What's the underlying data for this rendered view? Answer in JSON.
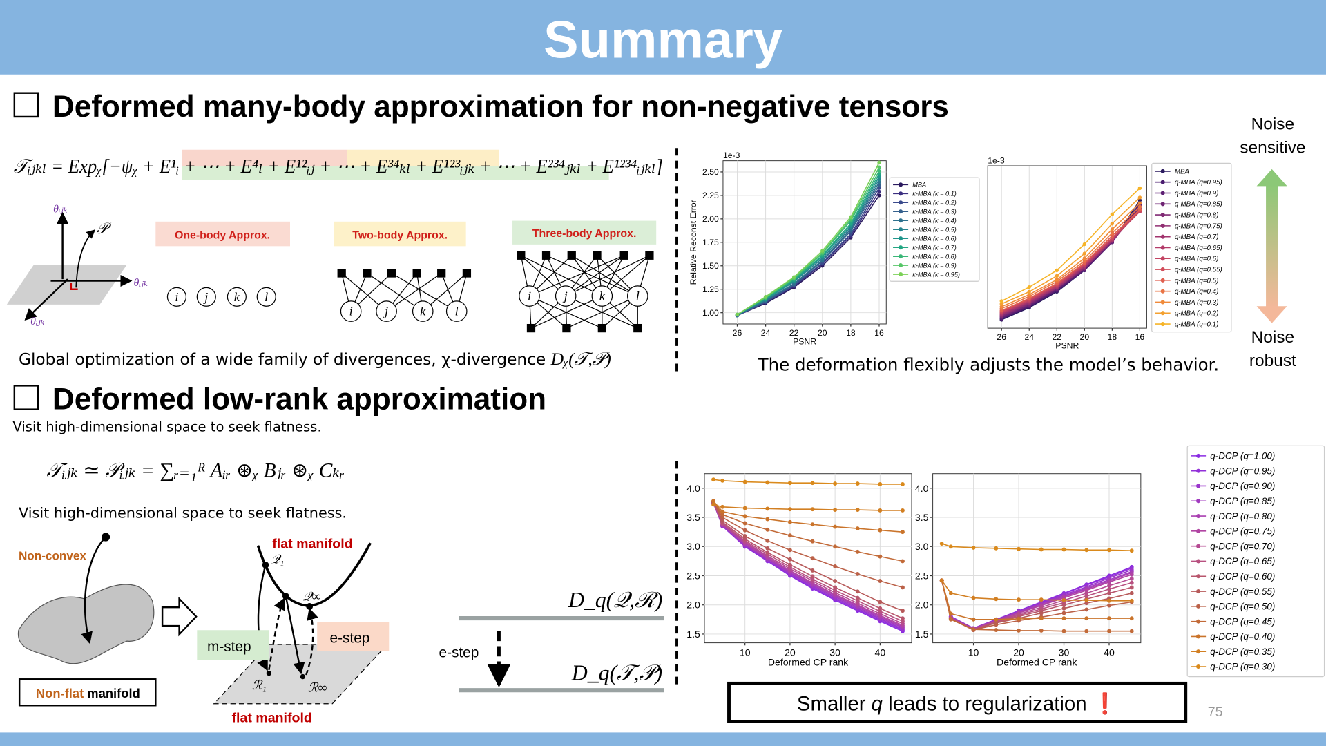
{
  "header": {
    "title": "Summary"
  },
  "section1": {
    "title": "Deformed many-body approximation for non-negative tensors",
    "formula": "𝒯ᵢⱼₖₗ = Expᵪ[−ψᵪ + E¹ᵢ + ⋯ + E⁴ₗ + E¹²ᵢⱼ + ⋯ + E³⁴ₖₗ + E¹²³ᵢⱼₖ + ⋯ + E²³⁴ⱼₖₗ + E¹²³⁴ᵢⱼₖₗ]",
    "approx_labels": [
      "One-body Approx.",
      "Two-body Approx.",
      "Three-body Approx."
    ],
    "theta_labels": [
      "θᵢⱼₖ",
      "θᵢⱼₖ",
      "θᵢⱼₖ"
    ],
    "point_label": "𝒫",
    "nodes": [
      [
        "i",
        "j",
        "k",
        "l"
      ],
      [
        "i",
        "j",
        "k",
        "l"
      ],
      [
        "i",
        "j",
        "k",
        "l"
      ]
    ],
    "caption": "Global optimization of a wide family of divergences, χ-divergence ",
    "caption_math": "Dᵪ(𝒯,𝒫)"
  },
  "plots_caption": "The deformation flexibly adjusts the model’s behavior.",
  "noise": {
    "top": [
      "Noise",
      "sensitive"
    ],
    "bottom": [
      "Noise",
      "robust"
    ]
  },
  "section2": {
    "title": "Deformed low-rank approximation",
    "subtitle": "Visit high-dimensional space to seek flatness.",
    "formula": "𝒯ᵢⱼₖ ≃ 𝒫ᵢⱼₖ = ∑ᵣ₌₁ᴿ Aᵢᵣ ⊛ᵪ Bⱼᵣ ⊛ᵪ Cₖᵣ",
    "note": "Visit high-dimensional space to seek flatness.",
    "non_convex": "Non-convex",
    "non_flat": [
      "Non-flat",
      " manifold"
    ],
    "flat_manifold": [
      "flat manifold",
      "flat manifold"
    ],
    "points": [
      "𝒬₁",
      "𝒬∞",
      "ℛ₁",
      "ℛ∞"
    ],
    "m_step": "m-step",
    "e_step": [
      "e-step",
      "e-step"
    ],
    "divergences": [
      "D_q(𝒬,ℛ)",
      "D_q(𝒯,𝒫)"
    ]
  },
  "conclusion": [
    "Smaller ",
    "q",
    " leads to regularization ",
    "❗"
  ],
  "page_number": "75",
  "chart_data": [
    {
      "type": "line",
      "ylabel": "Relative Reconst Error",
      "xlabel": "PSNR",
      "y_offset_label": "1e-3",
      "legend": true,
      "x": [
        26,
        24,
        22,
        20,
        18,
        16
      ],
      "xlim": [
        27,
        15.5
      ],
      "xticks": [
        26,
        24,
        22,
        20,
        18,
        16
      ],
      "ylim": [
        0.88,
        2.62
      ],
      "yticks": [
        {
          "value": 1,
          "label": "1.00"
        },
        1.25,
        {
          "value": 1.5,
          "label": "1.50"
        },
        1.75,
        {
          "value": 2,
          "label": "2.00"
        },
        2.25,
        {
          "value": 2.5,
          "label": "2.50"
        }
      ],
      "grid": true,
      "series": [
        {
          "name": "MBA",
          "color": "#2a1a5e",
          "values": [
            0.97,
            1.1,
            1.27,
            1.5,
            1.8,
            2.25
          ]
        },
        {
          "name": "κ-MBA (κ = 0.1)",
          "color": "#3b2f80",
          "values": [
            0.97,
            1.11,
            1.28,
            1.52,
            1.82,
            2.29
          ]
        },
        {
          "name": "κ-MBA (κ = 0.2)",
          "color": "#3a4a8c",
          "values": [
            0.97,
            1.11,
            1.29,
            1.53,
            1.84,
            2.33
          ]
        },
        {
          "name": "κ-MBA (κ = 0.3)",
          "color": "#35608d",
          "values": [
            0.97,
            1.12,
            1.3,
            1.55,
            1.87,
            2.36
          ]
        },
        {
          "name": "κ-MBA (κ = 0.4)",
          "color": "#2d718e",
          "values": [
            0.97,
            1.13,
            1.31,
            1.56,
            1.89,
            2.39
          ]
        },
        {
          "name": "κ-MBA (κ = 0.5)",
          "color": "#26838e",
          "values": [
            0.98,
            1.14,
            1.33,
            1.58,
            1.91,
            2.42
          ]
        },
        {
          "name": "κ-MBA (κ = 0.6)",
          "color": "#1f958b",
          "values": [
            0.98,
            1.14,
            1.34,
            1.6,
            1.93,
            2.45
          ]
        },
        {
          "name": "κ-MBA (κ = 0.7)",
          "color": "#23a783",
          "values": [
            0.98,
            1.15,
            1.35,
            1.61,
            1.95,
            2.48
          ]
        },
        {
          "name": "κ-MBA (κ = 0.8)",
          "color": "#3ab778",
          "values": [
            0.98,
            1.16,
            1.36,
            1.63,
            1.98,
            2.51
          ]
        },
        {
          "name": "κ-MBA (κ = 0.9)",
          "color": "#56c667",
          "values": [
            0.98,
            1.16,
            1.37,
            1.64,
            2.0,
            2.55
          ]
        },
        {
          "name": "κ-MBA (κ = 0.95)",
          "color": "#7bd157",
          "values": [
            0.98,
            1.17,
            1.38,
            1.66,
            2.02,
            2.6
          ]
        }
      ]
    },
    {
      "type": "line",
      "xlabel": "PSNR",
      "y_offset_label": "1e-3",
      "legend": true,
      "x": [
        26,
        24,
        22,
        20,
        18,
        16
      ],
      "xlim": [
        27,
        15.5
      ],
      "xticks": [
        26,
        24,
        22,
        20,
        18,
        16
      ],
      "ylim": [
        0.88,
        2.62
      ],
      "grid": true,
      "series": [
        {
          "name": "MBA",
          "color": "#2a1a5e",
          "values": [
            0.97,
            1.1,
            1.27,
            1.5,
            1.8,
            2.25
          ]
        },
        {
          "name": "q-MBA (q=0.95)",
          "color": "#4a1c6f",
          "values": [
            0.98,
            1.11,
            1.28,
            1.5,
            1.8,
            2.22
          ]
        },
        {
          "name": "q-MBA (q=0.9)",
          "color": "#5d1f73",
          "values": [
            0.99,
            1.12,
            1.29,
            1.51,
            1.8,
            2.2
          ]
        },
        {
          "name": "q-MBA (q=0.85)",
          "color": "#6f2474",
          "values": [
            1.0,
            1.13,
            1.3,
            1.52,
            1.81,
            2.18
          ]
        },
        {
          "name": "q-MBA (q=0.8)",
          "color": "#802a74",
          "values": [
            1.01,
            1.14,
            1.31,
            1.52,
            1.81,
            2.16
          ]
        },
        {
          "name": "q-MBA (q=0.75)",
          "color": "#912f72",
          "values": [
            1.02,
            1.15,
            1.31,
            1.53,
            1.82,
            2.15
          ]
        },
        {
          "name": "q-MBA (q=0.7)",
          "color": "#a2346e",
          "values": [
            1.03,
            1.16,
            1.32,
            1.54,
            1.82,
            2.14
          ]
        },
        {
          "name": "q-MBA (q=0.65)",
          "color": "#b33b69",
          "values": [
            1.04,
            1.17,
            1.33,
            1.55,
            1.83,
            2.13
          ]
        },
        {
          "name": "q-MBA (q=0.6)",
          "color": "#c34362",
          "values": [
            1.05,
            1.18,
            1.34,
            1.56,
            1.84,
            2.13
          ]
        },
        {
          "name": "q-MBA (q=0.55)",
          "color": "#d14c5a",
          "values": [
            1.06,
            1.19,
            1.35,
            1.57,
            1.85,
            2.14
          ]
        },
        {
          "name": "q-MBA (q=0.5)",
          "color": "#e06050",
          "values": [
            1.07,
            1.2,
            1.36,
            1.58,
            1.87,
            2.15
          ]
        },
        {
          "name": "q-MBA (q=0.4)",
          "color": "#e97445",
          "values": [
            1.09,
            1.22,
            1.38,
            1.6,
            1.9,
            2.18
          ]
        },
        {
          "name": "q-MBA (q=0.3)",
          "color": "#f08a3a",
          "values": [
            1.11,
            1.24,
            1.4,
            1.63,
            1.94,
            2.22
          ]
        },
        {
          "name": "q-MBA (q=0.2)",
          "color": "#f4a130",
          "values": [
            1.14,
            1.27,
            1.44,
            1.68,
            2.0,
            2.28
          ]
        },
        {
          "name": "q-MBA (q=0.1)",
          "color": "#f6b428",
          "values": [
            1.17,
            1.32,
            1.5,
            1.78,
            2.1,
            2.38
          ]
        }
      ]
    },
    {
      "type": "line",
      "xlabel": "Deformed CP rank",
      "legend": true,
      "x": [
        3,
        5,
        10,
        15,
        20,
        25,
        30,
        35,
        40,
        45
      ],
      "xlim": [
        1,
        47
      ],
      "xticks": [
        10,
        20,
        30,
        40
      ],
      "ylim": [
        1.35,
        4.25
      ],
      "yticks": [
        1.5,
        {
          "value": 2,
          "label": "2.0"
        },
        2.5,
        {
          "value": 3,
          "label": "3.0"
        },
        3.5,
        {
          "value": 4,
          "label": "4.0"
        }
      ],
      "grid": true,
      "series": [
        {
          "name": "q-DCP (q=1.00)",
          "color": "#8a2be2",
          "values": [
            3.75,
            3.35,
            3.0,
            2.75,
            2.5,
            2.28,
            2.08,
            1.9,
            1.72,
            1.55
          ]
        },
        {
          "name": "q-DCP (q=0.95)",
          "color": "#9230d8",
          "values": [
            3.75,
            3.35,
            3.0,
            2.76,
            2.51,
            2.3,
            2.1,
            1.92,
            1.74,
            1.57
          ]
        },
        {
          "name": "q-DCP (q=0.90)",
          "color": "#9a35cc",
          "values": [
            3.75,
            3.36,
            3.02,
            2.77,
            2.53,
            2.32,
            2.12,
            1.94,
            1.76,
            1.59
          ]
        },
        {
          "name": "q-DCP (q=0.85)",
          "color": "#a13abf",
          "values": [
            3.75,
            3.36,
            3.03,
            2.79,
            2.55,
            2.34,
            2.14,
            1.96,
            1.78,
            1.61
          ]
        },
        {
          "name": "q-DCP (q=0.80)",
          "color": "#a93fb1",
          "values": [
            3.75,
            3.37,
            3.04,
            2.8,
            2.57,
            2.36,
            2.16,
            1.98,
            1.8,
            1.63
          ]
        },
        {
          "name": "q-DCP (q=0.75)",
          "color": "#b044a2",
          "values": [
            3.76,
            3.38,
            3.06,
            2.82,
            2.59,
            2.38,
            2.18,
            2.0,
            1.82,
            1.65
          ]
        },
        {
          "name": "q-DCP (q=0.70)",
          "color": "#b54a92",
          "values": [
            3.76,
            3.39,
            3.08,
            2.84,
            2.62,
            2.41,
            2.21,
            2.03,
            1.85,
            1.68
          ]
        },
        {
          "name": "q-DCP (q=0.65)",
          "color": "#b85180",
          "values": [
            3.76,
            3.4,
            3.1,
            2.87,
            2.65,
            2.44,
            2.25,
            2.07,
            1.89,
            1.72
          ]
        },
        {
          "name": "q-DCP (q=0.60)",
          "color": "#b8566d",
          "values": [
            3.77,
            3.42,
            3.13,
            2.9,
            2.69,
            2.49,
            2.3,
            2.12,
            1.94,
            1.77
          ]
        },
        {
          "name": "q-DCP (q=0.55)",
          "color": "#b75a5a",
          "values": [
            3.77,
            3.45,
            3.18,
            2.97,
            2.78,
            2.59,
            2.41,
            2.23,
            2.05,
            1.9
          ]
        },
        {
          "name": "q-DCP (q=0.50)",
          "color": "#bb6148",
          "values": [
            3.78,
            3.5,
            3.28,
            3.1,
            2.94,
            2.8,
            2.66,
            2.53,
            2.41,
            2.3
          ]
        },
        {
          "name": "q-DCP (q=0.45)",
          "color": "#c26a38",
          "values": [
            3.78,
            3.55,
            3.4,
            3.29,
            3.19,
            3.09,
            3.0,
            2.91,
            2.83,
            2.75
          ]
        },
        {
          "name": "q-DCP (q=0.40)",
          "color": "#ca742b",
          "values": [
            3.78,
            3.6,
            3.52,
            3.47,
            3.42,
            3.38,
            3.34,
            3.31,
            3.28,
            3.25
          ]
        },
        {
          "name": "q-DCP (q=0.35)",
          "color": "#d27f22",
          "values": [
            3.72,
            3.68,
            3.66,
            3.65,
            3.64,
            3.64,
            3.63,
            3.63,
            3.62,
            3.62
          ]
        },
        {
          "name": "q-DCP (q=0.30)",
          "color": "#da8a1c",
          "values": [
            4.15,
            4.13,
            4.11,
            4.1,
            4.09,
            4.09,
            4.08,
            4.08,
            4.07,
            4.07
          ]
        }
      ]
    },
    {
      "type": "line",
      "xlabel": "Deformed CP rank",
      "x": [
        3,
        5,
        10,
        15,
        20,
        25,
        30,
        35,
        40,
        45
      ],
      "xlim": [
        1,
        47
      ],
      "xticks": [
        10,
        20,
        30,
        40
      ],
      "ylim": [
        1.35,
        4.25
      ],
      "yticks": [
        1.5,
        {
          "value": 2,
          "label": "2.0"
        },
        2.5,
        {
          "value": 3,
          "label": "3.0"
        },
        3.5,
        {
          "value": 4,
          "label": "4.0"
        }
      ],
      "grid": true,
      "series": [
        {
          "color": "#8a2be2",
          "values": [
            2.42,
            1.8,
            1.6,
            1.75,
            1.9,
            2.05,
            2.2,
            2.35,
            2.5,
            2.65
          ]
        },
        {
          "color": "#9230d8",
          "values": [
            2.42,
            1.8,
            1.6,
            1.75,
            1.89,
            2.04,
            2.19,
            2.34,
            2.48,
            2.63
          ]
        },
        {
          "color": "#9a35cc",
          "values": [
            2.42,
            1.79,
            1.6,
            1.74,
            1.89,
            2.03,
            2.17,
            2.31,
            2.46,
            2.6
          ]
        },
        {
          "color": "#a13abf",
          "values": [
            2.42,
            1.79,
            1.6,
            1.74,
            1.88,
            2.02,
            2.15,
            2.29,
            2.43,
            2.57
          ]
        },
        {
          "color": "#a93fb1",
          "values": [
            2.42,
            1.78,
            1.59,
            1.73,
            1.87,
            2.0,
            2.14,
            2.27,
            2.41,
            2.55
          ]
        },
        {
          "color": "#b044a2",
          "values": [
            2.42,
            1.78,
            1.59,
            1.73,
            1.86,
            1.99,
            2.12,
            2.25,
            2.39,
            2.52
          ]
        },
        {
          "color": "#b54a92",
          "values": [
            2.42,
            1.77,
            1.58,
            1.72,
            1.84,
            1.96,
            2.08,
            2.2,
            2.33,
            2.45
          ]
        },
        {
          "color": "#b85180",
          "values": [
            2.42,
            1.77,
            1.58,
            1.71,
            1.82,
            1.93,
            2.04,
            2.15,
            2.27,
            2.38
          ]
        },
        {
          "color": "#b8566d",
          "values": [
            2.42,
            1.76,
            1.57,
            1.7,
            1.8,
            1.9,
            2.0,
            2.1,
            2.2,
            2.3
          ]
        },
        {
          "color": "#b75a5a",
          "values": [
            2.42,
            1.76,
            1.57,
            1.69,
            1.77,
            1.86,
            1.94,
            2.03,
            2.11,
            2.2
          ]
        },
        {
          "color": "#bb6148",
          "values": [
            2.42,
            1.76,
            1.57,
            1.66,
            1.73,
            1.79,
            1.86,
            1.92,
            1.99,
            2.05
          ]
        },
        {
          "color": "#c26a38",
          "values": [
            2.42,
            1.75,
            1.58,
            1.57,
            1.56,
            1.56,
            1.55,
            1.55,
            1.55,
            1.55
          ]
        },
        {
          "color": "#ca742b",
          "values": [
            2.42,
            1.85,
            1.75,
            1.75,
            1.76,
            1.77,
            1.77,
            1.77,
            1.77,
            1.77
          ]
        },
        {
          "color": "#d27f22",
          "values": [
            2.42,
            2.2,
            2.12,
            2.1,
            2.09,
            2.09,
            2.08,
            2.08,
            2.07,
            2.07
          ]
        },
        {
          "color": "#da8a1c",
          "values": [
            3.05,
            3.0,
            2.98,
            2.97,
            2.96,
            2.95,
            2.95,
            2.94,
            2.94,
            2.93
          ]
        }
      ]
    }
  ]
}
